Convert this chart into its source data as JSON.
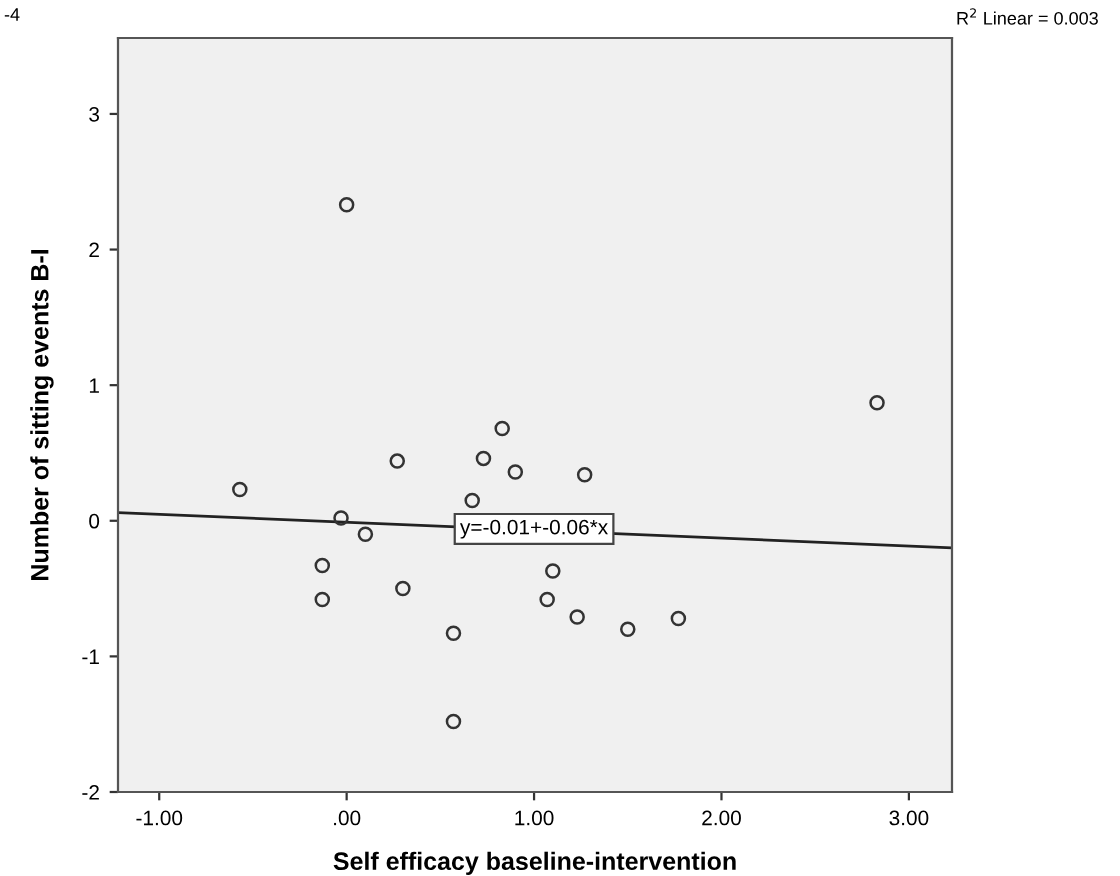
{
  "chart_data": {
    "type": "scatter",
    "xlabel": "Self efficacy baseline-intervention",
    "ylabel": "Number of sitting events B-I",
    "xlim": [
      -1.22,
      3.23
    ],
    "xticks": [
      {
        "value": -1,
        "label": "-1.00"
      },
      {
        "value": 0,
        "label": ".00"
      },
      {
        "value": 1,
        "label": "1.00"
      },
      {
        "value": 2,
        "label": "2.00"
      },
      {
        "value": 3,
        "label": "3.00"
      }
    ],
    "ylim": [
      -2,
      3.56
    ],
    "yticks": [
      -2,
      -1,
      0,
      1,
      2,
      3
    ],
    "grid": false,
    "marker": "circle",
    "series": [
      {
        "color": "#333333",
        "x": [
          0.0,
          -0.57,
          0.27,
          0.83,
          0.73,
          0.9,
          1.27,
          0.67,
          -0.03,
          0.1,
          -0.13,
          -0.13,
          0.3,
          0.57,
          0.57,
          1.1,
          1.07,
          1.23,
          1.5,
          1.77,
          2.83
        ],
        "values": [
          2.33,
          0.23,
          0.44,
          0.68,
          0.46,
          0.36,
          0.34,
          0.15,
          0.02,
          -0.1,
          -0.33,
          -0.58,
          -0.5,
          -0.83,
          -1.48,
          -0.37,
          -0.58,
          -0.71,
          -0.8,
          -0.72,
          0.87
        ]
      },
      {
        "type": "line",
        "color": "#222222",
        "line_style": "solid",
        "marker": "none",
        "x": [
          -1.22,
          3.23
        ],
        "values": [
          0.06,
          -0.2
        ]
      }
    ],
    "annotations": [
      {
        "text": "y=-0.01+-0.06*x",
        "x": 1.0,
        "y": -0.06
      },
      "R$^{2}$ Linear = 0.003",
      "-4"
    ]
  }
}
